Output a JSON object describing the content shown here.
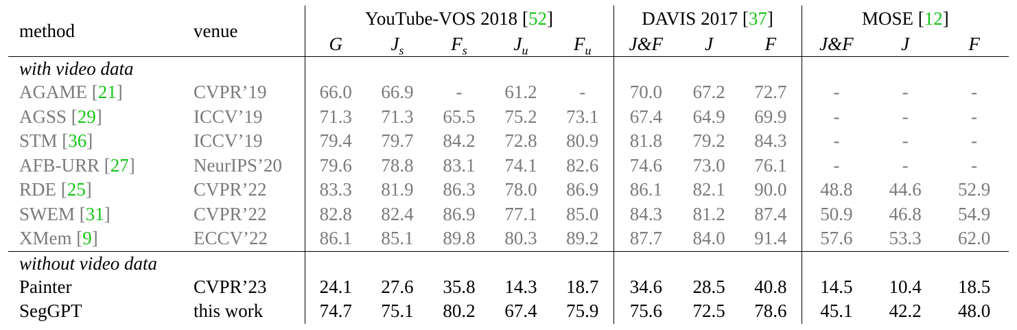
{
  "header": {
    "method": "method",
    "venue": "venue",
    "groups": [
      {
        "name": "YouTube-VOS 2018 ",
        "ref": "52",
        "close": "]",
        "open": "["
      },
      {
        "name": "DAVIS 2017 ",
        "ref": "37",
        "close": "]",
        "open": "["
      },
      {
        "name": "MOSE ",
        "ref": "12",
        "close": "]",
        "open": "["
      }
    ],
    "metrics": {
      "ytvos": [
        "G",
        "J",
        "F",
        "J",
        "F"
      ],
      "ytvos_sub": [
        "",
        "s",
        "s",
        "u",
        "u"
      ],
      "davis": [
        "J&F",
        "J",
        "F"
      ],
      "mose": [
        "J&F",
        "J",
        "F"
      ]
    }
  },
  "sections": [
    {
      "title": "with video data",
      "rows": [
        {
          "method": "AGAME ",
          "ref": "21",
          "venue": "CVPR’19",
          "values": [
            "66.0",
            "66.9",
            "-",
            "61.2",
            "-",
            "70.0",
            "67.2",
            "72.7",
            "-",
            "-",
            "-"
          ]
        },
        {
          "method": "AGSS ",
          "ref": "29",
          "venue": "ICCV’19",
          "values": [
            "71.3",
            "71.3",
            "65.5",
            "75.2",
            "73.1",
            "67.4",
            "64.9",
            "69.9",
            "-",
            "-",
            "-"
          ]
        },
        {
          "method": "STM ",
          "ref": "36",
          "venue": "ICCV’19",
          "values": [
            "79.4",
            "79.7",
            "84.2",
            "72.8",
            "80.9",
            "81.8",
            "79.2",
            "84.3",
            "-",
            "-",
            "-"
          ]
        },
        {
          "method": "AFB-URR ",
          "ref": "27",
          "venue": "NeurIPS’20",
          "values": [
            "79.6",
            "78.8",
            "83.1",
            "74.1",
            "82.6",
            "74.6",
            "73.0",
            "76.1",
            "-",
            "-",
            "-"
          ]
        },
        {
          "method": "RDE ",
          "ref": "25",
          "venue": "CVPR’22",
          "values": [
            "83.3",
            "81.9",
            "86.3",
            "78.0",
            "86.9",
            "86.1",
            "82.1",
            "90.0",
            "48.8",
            "44.6",
            "52.9"
          ]
        },
        {
          "method": "SWEM ",
          "ref": "31",
          "venue": "CVPR’22",
          "values": [
            "82.8",
            "82.4",
            "86.9",
            "77.1",
            "85.0",
            "84.3",
            "81.2",
            "87.4",
            "50.9",
            "46.8",
            "54.9"
          ]
        },
        {
          "method": "XMem ",
          "ref": "9",
          "venue": "ECCV’22",
          "values": [
            "86.1",
            "85.1",
            "89.8",
            "80.3",
            "89.2",
            "87.7",
            "84.0",
            "91.4",
            "57.6",
            "53.3",
            "62.0"
          ]
        }
      ]
    },
    {
      "title": "without video data",
      "rows": [
        {
          "method": "Painter",
          "ref": "",
          "venue": "CVPR’23",
          "values": [
            "24.1",
            "27.6",
            "35.8",
            "14.3",
            "18.7",
            "34.6",
            "28.5",
            "40.8",
            "14.5",
            "10.4",
            "18.5"
          ]
        },
        {
          "method": "SegGPT",
          "ref": "",
          "venue": "this work",
          "values": [
            "74.7",
            "75.1",
            "80.2",
            "67.4",
            "75.9",
            "75.6",
            "72.5",
            "78.6",
            "45.1",
            "42.2",
            "48.0"
          ]
        }
      ]
    }
  ],
  "colors": {
    "citation": "#18c418",
    "muted_text": "#7a7a7a",
    "text": "#000000"
  }
}
